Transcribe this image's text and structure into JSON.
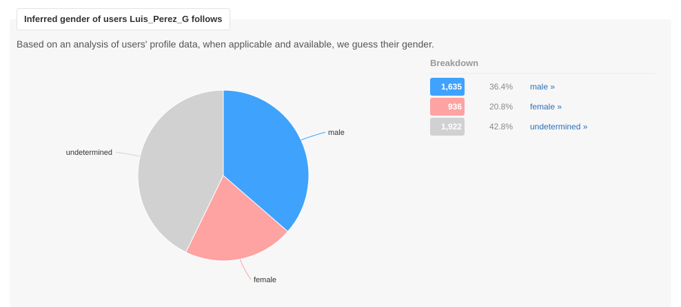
{
  "header": {
    "title": "Inferred gender of users Luis_Perez_G follows"
  },
  "description": "Based on an analysis of users' profile data, when applicable and available, we guess their gender.",
  "breakdown": {
    "title": "Breakdown",
    "rows": [
      {
        "count": "1,635",
        "percent": "36.4%",
        "link": "male »",
        "color": "#3fa2fd"
      },
      {
        "count": "936",
        "percent": "20.8%",
        "link": "female »",
        "color": "#fea2a2"
      },
      {
        "count": "1,922",
        "percent": "42.8%",
        "link": "undetermined »",
        "color": "#d1d1d1"
      }
    ]
  },
  "chart_data": {
    "type": "pie",
    "title": "",
    "slices": [
      {
        "label": "male",
        "value": 1635,
        "color": "#3fa2fd"
      },
      {
        "label": "female",
        "value": 936,
        "color": "#fea2a2"
      },
      {
        "label": "undetermined",
        "value": 1922,
        "color": "#d1d1d1"
      }
    ]
  }
}
